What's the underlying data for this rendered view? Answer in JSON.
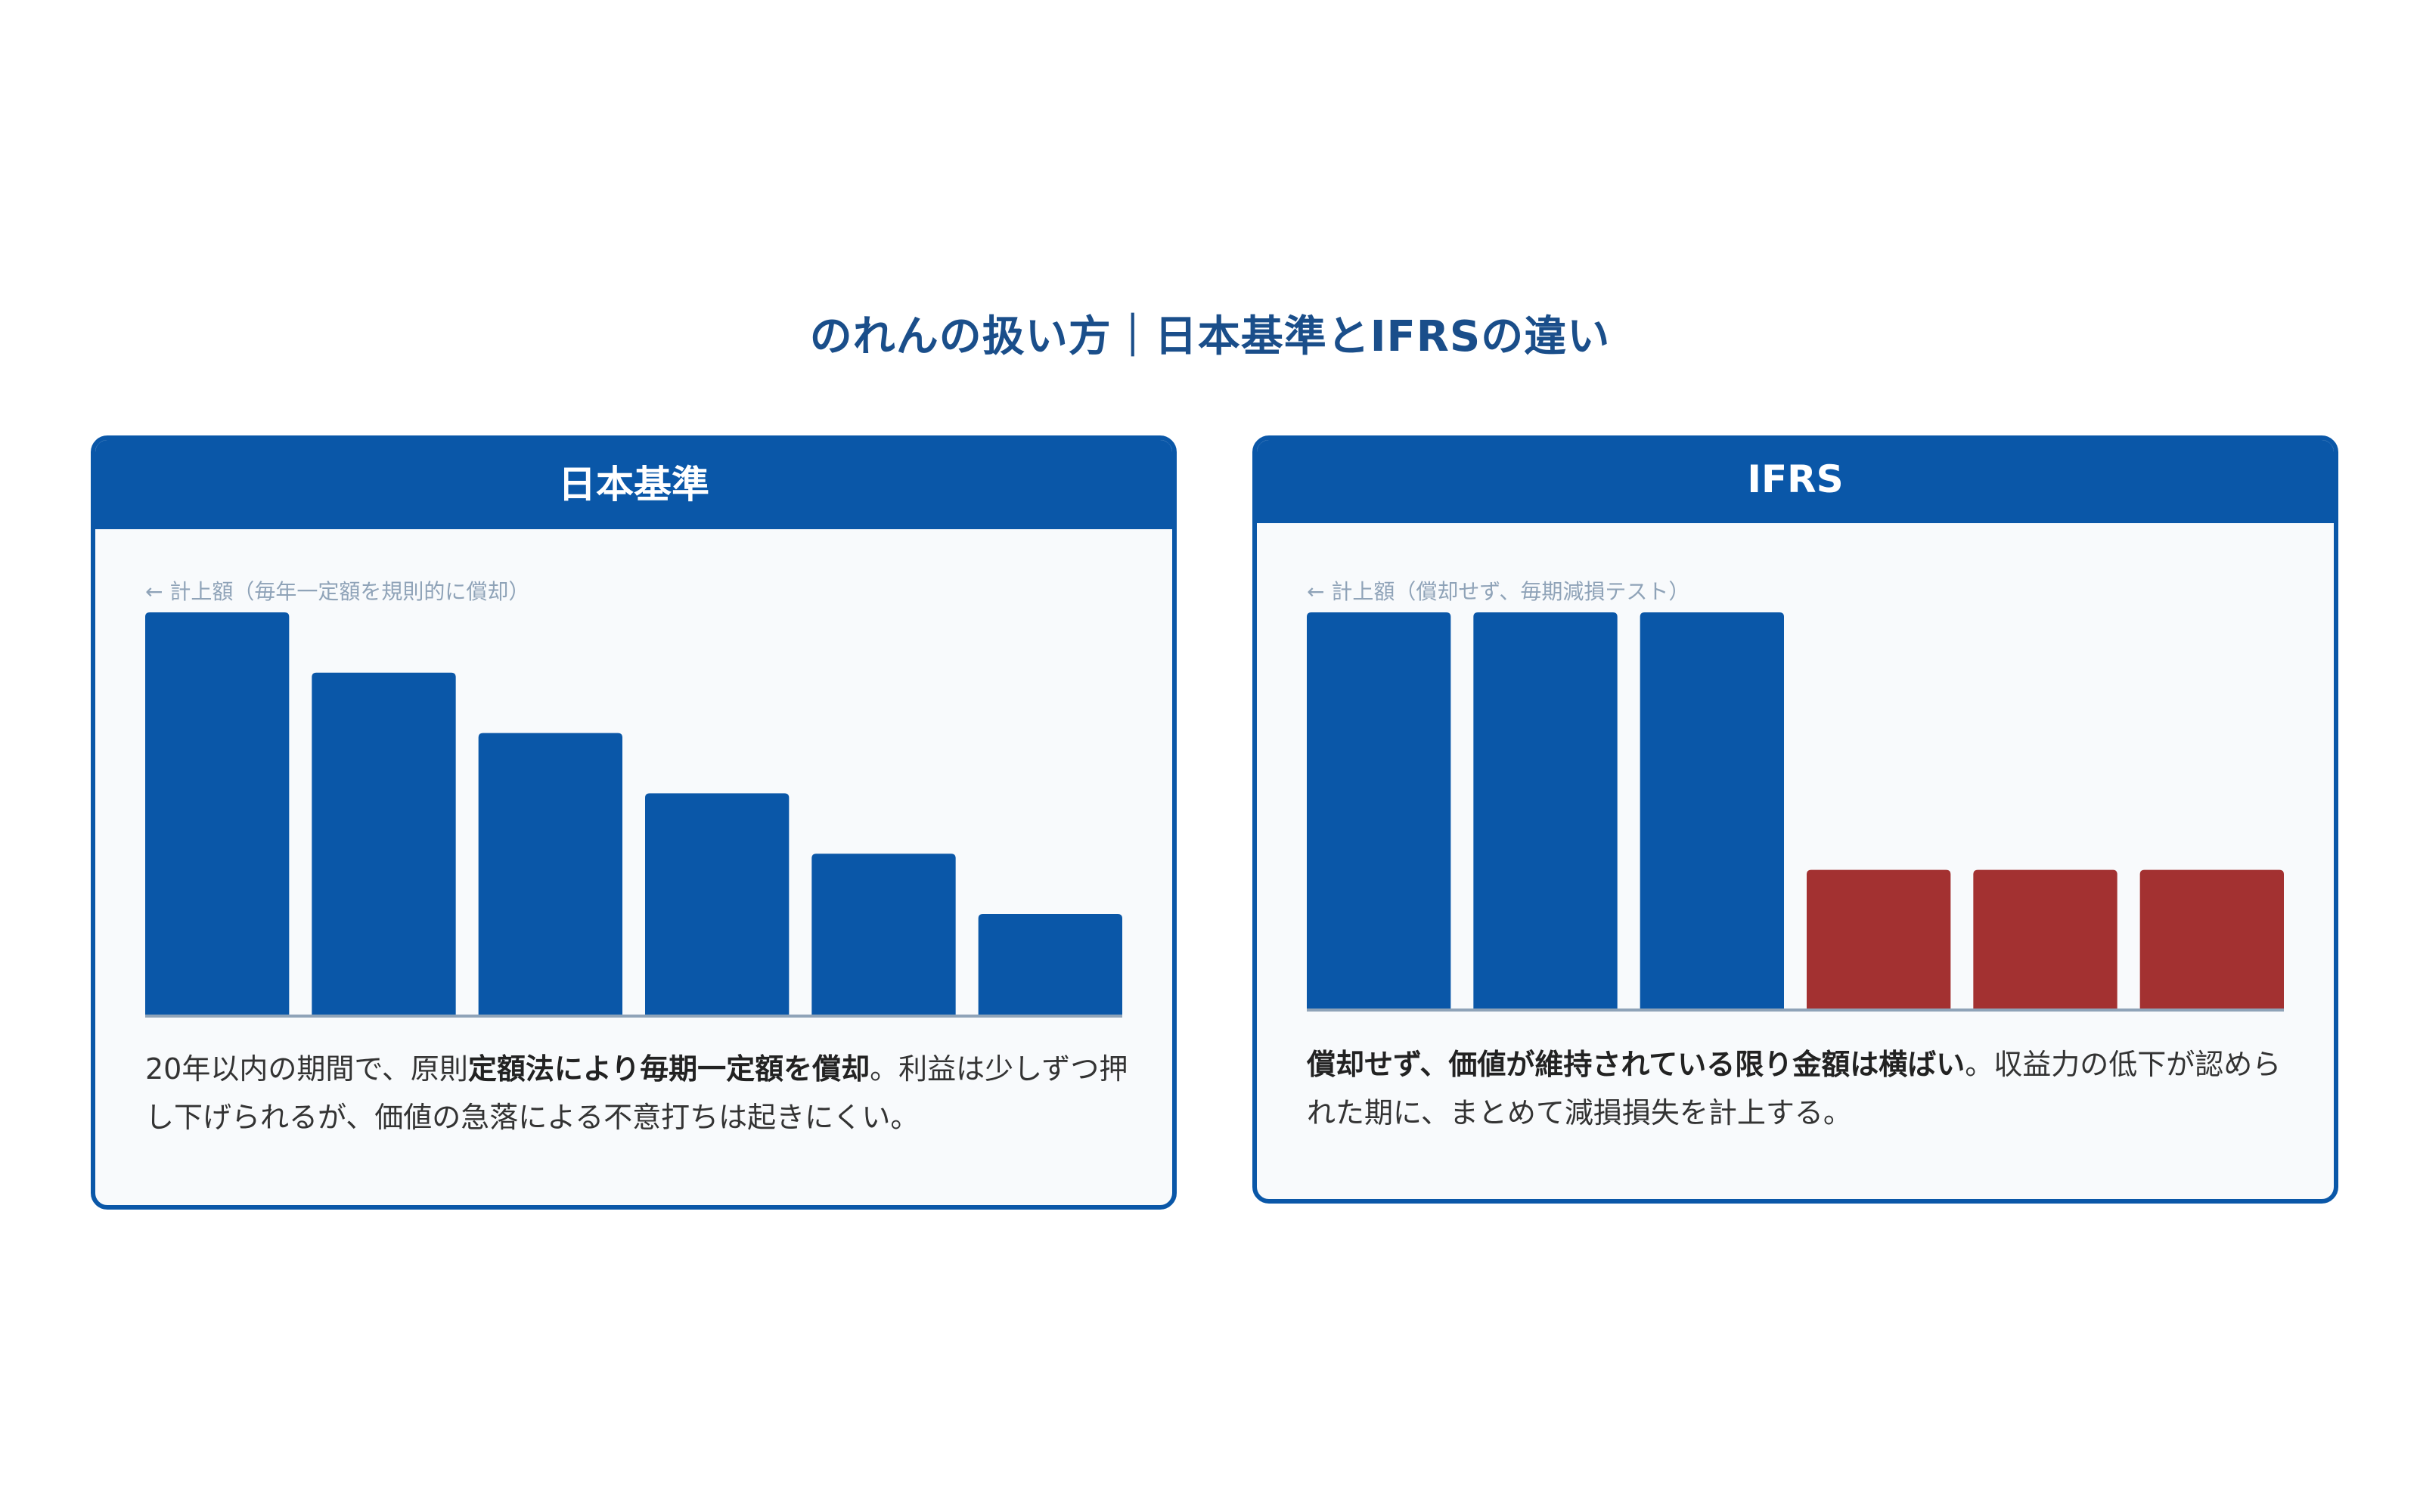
{
  "title": "のれんの扱い方｜日本基準とIFRSの違い",
  "colors": {
    "title": "#1a4e8a",
    "primary": "#0a57a8",
    "impairment": "#a33131",
    "panel_bg": "#f8fafc",
    "axis_label": "#8fa3b8",
    "baseline": "#8fa3b8"
  },
  "panels": [
    {
      "header": "日本基準",
      "axis_label": "← 計上額（毎年一定額を規則的に償却）",
      "description": {
        "part1": "20年以内の期間で、原則",
        "bold": "定額法により毎期一定額を償却",
        "part2": "。利益は少しずつ押し下げられるが、価値の急落による不意打ちは起きにくい。"
      }
    },
    {
      "header": "IFRS",
      "axis_label": "← 計上額（償却せず、毎期減損テスト）",
      "description": {
        "bold": "償却せず、価値が維持されている限り金額は横ばい",
        "part2": "。収益力の低下が認められた期に、まとめて減損損失を計上する。"
      }
    }
  ],
  "chart_data": [
    {
      "type": "bar",
      "title": "日本基準",
      "ylabel": "← 計上額（毎年一定額を規則的に償却）",
      "categories": [
        "",
        "",
        "",
        "",
        "",
        ""
      ],
      "values": [
        100,
        85,
        70,
        55,
        40,
        25
      ],
      "colors": [
        "#0a57a8",
        "#0a57a8",
        "#0a57a8",
        "#0a57a8",
        "#0a57a8",
        "#0a57a8"
      ],
      "ylim": [
        0,
        100
      ],
      "grid": false
    },
    {
      "type": "bar",
      "title": "IFRS",
      "ylabel": "← 計上額（償却せず、毎期減損テスト）",
      "categories": [
        "",
        "",
        "",
        "",
        "",
        ""
      ],
      "values": [
        100,
        100,
        100,
        35,
        35,
        35
      ],
      "colors": [
        "#0a57a8",
        "#0a57a8",
        "#0a57a8",
        "#a33131",
        "#a33131",
        "#a33131"
      ],
      "ylim": [
        0,
        100
      ],
      "grid": false
    }
  ]
}
